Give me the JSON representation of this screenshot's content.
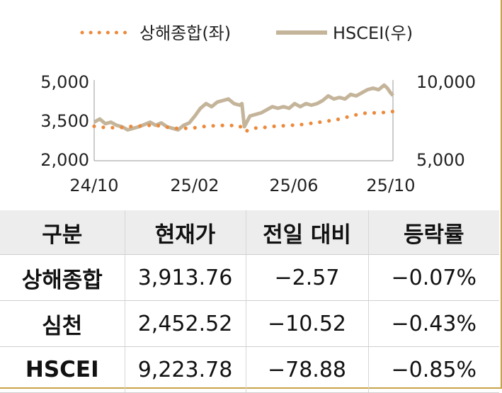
{
  "chart_data": {
    "type": "line",
    "legend_position": "top",
    "grid": false,
    "x_ticks": [
      "24/10",
      "25/02",
      "25/06",
      "25/10"
    ],
    "y_left": {
      "range": [
        2000,
        5000
      ],
      "ticks": [
        "5,000",
        "3,500",
        "2,000"
      ]
    },
    "y_right": {
      "range": [
        5000,
        10000
      ],
      "ticks": [
        "10,000",
        "5,000"
      ]
    },
    "series": [
      {
        "name": "상해종합(좌)",
        "axis": "left",
        "color": "#ec8a3c",
        "style": "dotted",
        "points": [
          [
            "2024-10-01",
            3340
          ],
          [
            "2024-10-15",
            3290
          ],
          [
            "2024-11-01",
            3280
          ],
          [
            "2024-11-15",
            3330
          ],
          [
            "2024-12-01",
            3360
          ],
          [
            "2024-12-15",
            3390
          ],
          [
            "2025-01-01",
            3300
          ],
          [
            "2025-01-15",
            3250
          ],
          [
            "2025-02-01",
            3270
          ],
          [
            "2025-02-15",
            3330
          ],
          [
            "2025-03-01",
            3360
          ],
          [
            "2025-03-15",
            3380
          ],
          [
            "2025-04-01",
            3360
          ],
          [
            "2025-04-07",
            3130
          ],
          [
            "2025-04-20",
            3270
          ],
          [
            "2025-05-01",
            3290
          ],
          [
            "2025-05-15",
            3340
          ],
          [
            "2025-06-01",
            3370
          ],
          [
            "2025-06-15",
            3400
          ],
          [
            "2025-07-01",
            3460
          ],
          [
            "2025-07-15",
            3520
          ],
          [
            "2025-08-01",
            3600
          ],
          [
            "2025-08-15",
            3710
          ],
          [
            "2025-09-01",
            3840
          ],
          [
            "2025-09-15",
            3860
          ],
          [
            "2025-10-01",
            3880
          ],
          [
            "2025-10-10",
            3914
          ]
        ]
      },
      {
        "name": "HSCEI(우)",
        "axis": "right",
        "color": "#c4b49a",
        "style": "solid",
        "points": [
          [
            "2024-10-01",
            7500
          ],
          [
            "2024-10-08",
            7700
          ],
          [
            "2024-10-15",
            7400
          ],
          [
            "2024-10-22",
            7500
          ],
          [
            "2024-10-29",
            7300
          ],
          [
            "2024-11-05",
            7200
          ],
          [
            "2024-11-12",
            7000
          ],
          [
            "2024-11-19",
            7100
          ],
          [
            "2024-11-26",
            7200
          ],
          [
            "2024-12-03",
            7350
          ],
          [
            "2024-12-10",
            7500
          ],
          [
            "2024-12-17",
            7300
          ],
          [
            "2024-12-24",
            7450
          ],
          [
            "2024-12-31",
            7200
          ],
          [
            "2025-01-07",
            7100
          ],
          [
            "2025-01-14",
            7000
          ],
          [
            "2025-01-21",
            7300
          ],
          [
            "2025-01-28",
            7450
          ],
          [
            "2025-02-04",
            7900
          ],
          [
            "2025-02-11",
            8400
          ],
          [
            "2025-02-18",
            8700
          ],
          [
            "2025-02-25",
            8500
          ],
          [
            "2025-03-04",
            8800
          ],
          [
            "2025-03-11",
            8900
          ],
          [
            "2025-03-18",
            9000
          ],
          [
            "2025-03-25",
            8700
          ],
          [
            "2025-04-01",
            8600
          ],
          [
            "2025-04-04",
            8700
          ],
          [
            "2025-04-07",
            7200
          ],
          [
            "2025-04-14",
            7900
          ],
          [
            "2025-04-21",
            8000
          ],
          [
            "2025-04-28",
            8100
          ],
          [
            "2025-05-05",
            8300
          ],
          [
            "2025-05-12",
            8500
          ],
          [
            "2025-05-19",
            8400
          ],
          [
            "2025-05-26",
            8500
          ],
          [
            "2025-06-02",
            8400
          ],
          [
            "2025-06-09",
            8700
          ],
          [
            "2025-06-16",
            8500
          ],
          [
            "2025-06-23",
            8700
          ],
          [
            "2025-06-30",
            8600
          ],
          [
            "2025-07-07",
            8700
          ],
          [
            "2025-07-14",
            8900
          ],
          [
            "2025-07-21",
            9200
          ],
          [
            "2025-07-28",
            9000
          ],
          [
            "2025-08-04",
            9100
          ],
          [
            "2025-08-11",
            9000
          ],
          [
            "2025-08-18",
            9300
          ],
          [
            "2025-08-25",
            9200
          ],
          [
            "2025-09-01",
            9400
          ],
          [
            "2025-09-08",
            9600
          ],
          [
            "2025-09-15",
            9700
          ],
          [
            "2025-09-22",
            9600
          ],
          [
            "2025-09-29",
            9900
          ],
          [
            "2025-10-03",
            9700
          ],
          [
            "2025-10-07",
            9400
          ],
          [
            "2025-10-10",
            9224
          ]
        ]
      }
    ]
  },
  "table": {
    "headers": [
      "구분",
      "현재가",
      "전일 대비",
      "등락률"
    ],
    "rows": [
      [
        "상해종합",
        "3,913.76",
        "−2.57",
        "−0.07%"
      ],
      [
        "심천",
        "2,452.52",
        "−10.52",
        "−0.43%"
      ],
      [
        "HSCEI",
        "9,223.78",
        "−78.88",
        "−0.85%"
      ]
    ]
  }
}
